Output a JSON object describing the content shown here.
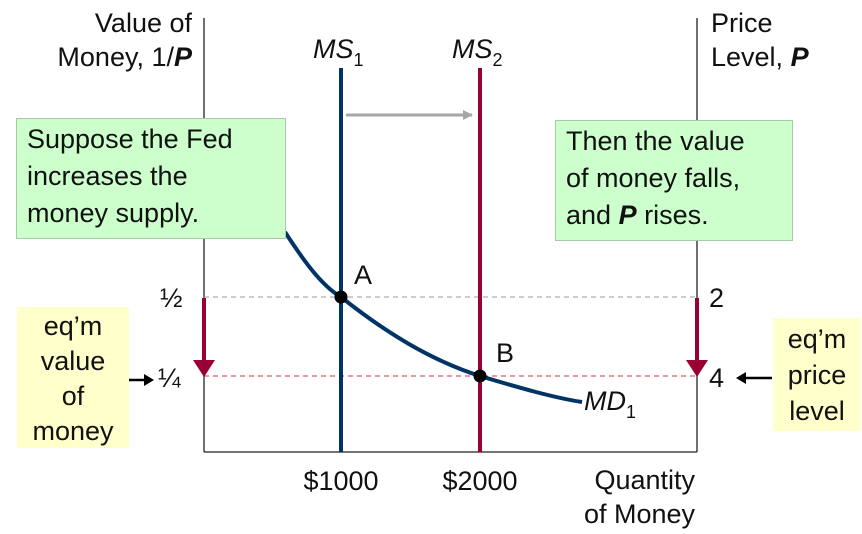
{
  "axes": {
    "left_title_line1": "Value of",
    "left_title_line2": "Money, 1/",
    "left_title_var": "P",
    "right_title_line1": "Price",
    "right_title_line2": "Level, ",
    "right_title_var": "P",
    "x_title_line1": "Quantity",
    "x_title_line2": "of Money",
    "x_ticks": [
      "$1000",
      "$2000"
    ],
    "left_ticks": [
      "½",
      "¼"
    ],
    "right_ticks": [
      "2",
      "4"
    ]
  },
  "curves": {
    "ms1": {
      "base": "MS",
      "sub": "1"
    },
    "ms2": {
      "base": "MS",
      "sub": "2"
    },
    "md1": {
      "base": "MD",
      "sub": "1"
    }
  },
  "points": {
    "a": "A",
    "b": "B"
  },
  "callouts": {
    "left_green": [
      "Suppose the Fed",
      "increases the",
      "money supply."
    ],
    "right_green_line1": "Then the value",
    "right_green_line2": "of money falls,",
    "right_green_line3_pre": "and ",
    "right_green_line3_var": "P",
    "right_green_line3_post": " rises.",
    "left_yellow": [
      "eq’m",
      "value",
      "of",
      "money"
    ],
    "right_yellow": [
      "eq’m",
      "price",
      "level"
    ]
  },
  "colors": {
    "ms1": "#003366",
    "ms2": "#990033",
    "md": "#003366",
    "arrow_gray": "#a6a6a6",
    "down_arrow": "#990033",
    "green_fill": "#ccffcc",
    "yellow_fill": "#ffffcc"
  }
}
